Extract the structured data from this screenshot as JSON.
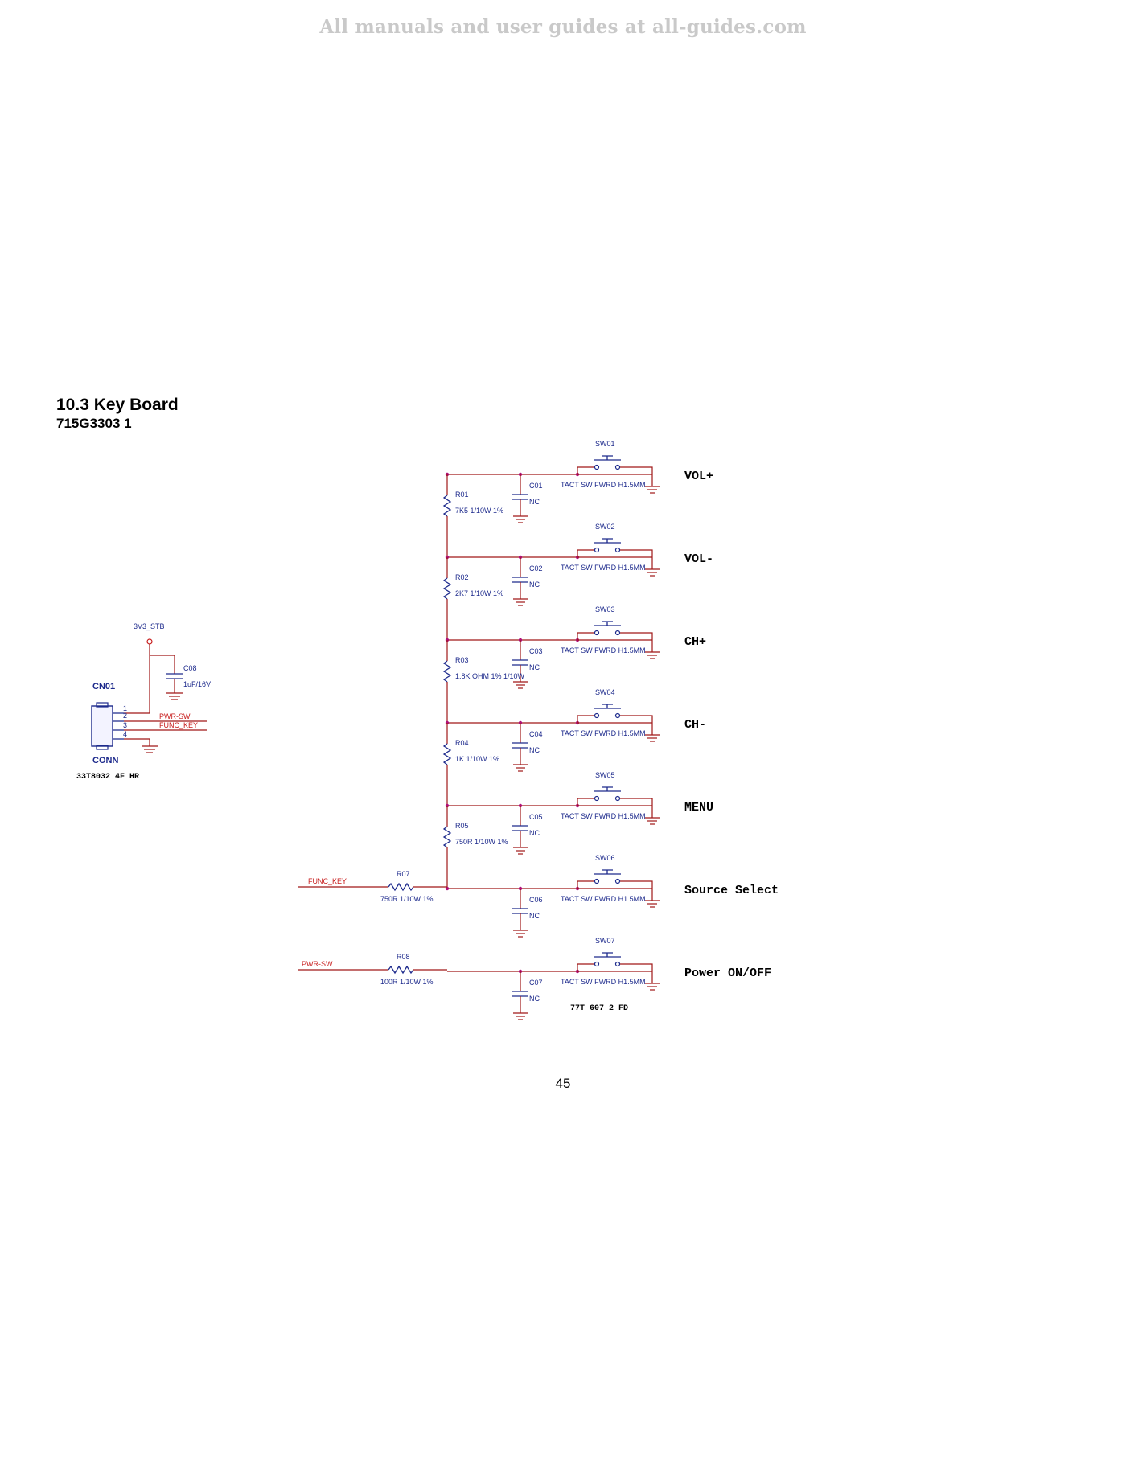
{
  "watermark": "All manuals and user guides at all-guides.com",
  "heading": {
    "title": "10.3 Key Board",
    "part_number": "715G3303    1"
  },
  "page_number": "45",
  "connector": {
    "ref": "CN01",
    "type": "CONN",
    "part": "33T8032 4F HR",
    "pins": [
      "1",
      "2",
      "3",
      "4"
    ],
    "net_pwr": "PWR-SW",
    "net_func": "FUNC_KEY",
    "supply": "3V3_STB",
    "cap_ref": "C08",
    "cap_value": "1uF/16V"
  },
  "ladder": [
    {
      "sw": "SW01",
      "sw_label": "TACT SW FWRD H1.5MM",
      "key": "VOL+",
      "cap": "C01",
      "cap_value": "NC",
      "res": "R01",
      "res_value": "7K5 1/10W 1%"
    },
    {
      "sw": "SW02",
      "sw_label": "TACT SW FWRD H1.5MM",
      "key": "VOL-",
      "cap": "C02",
      "cap_value": "NC",
      "res": "R02",
      "res_value": "2K7 1/10W 1%"
    },
    {
      "sw": "SW03",
      "sw_label": "TACT SW FWRD H1.5MM",
      "key": "CH+",
      "cap": "C03",
      "cap_value": "NC",
      "res": "R03",
      "res_value": "1.8K OHM 1% 1/10W"
    },
    {
      "sw": "SW04",
      "sw_label": "TACT SW FWRD H1.5MM",
      "key": "CH-",
      "cap": "C04",
      "cap_value": "NC",
      "res": "R04",
      "res_value": "1K 1/10W 1%"
    },
    {
      "sw": "SW05",
      "sw_label": "TACT SW FWRD H1.5MM",
      "key": "MENU",
      "cap": "C05",
      "cap_value": "NC",
      "res": "R05",
      "res_value": "750R 1/10W 1%"
    },
    {
      "sw": "SW06",
      "sw_label": "TACT SW FWRD H1.5MM",
      "key": "Source Select",
      "cap": "C06",
      "cap_value": "NC"
    },
    {
      "sw": "SW07",
      "sw_label": "TACT SW FWRD H1.5MM",
      "key": "Power ON/OFF",
      "cap": "C07",
      "cap_value": "NC"
    }
  ],
  "input_func": {
    "net": "FUNC_KEY",
    "res": "R07",
    "res_value": "750R 1/10W 1%"
  },
  "input_pwr": {
    "net": "PWR-SW",
    "res": "R08",
    "res_value": "100R 1/10W 1%"
  },
  "sw_part_number": "77T 607   2 FD"
}
